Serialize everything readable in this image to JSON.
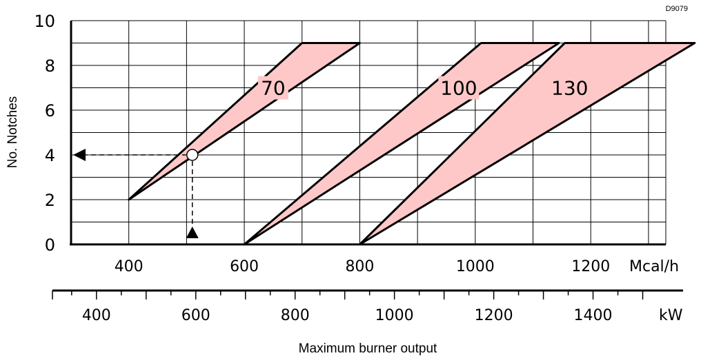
{
  "chart_data": {
    "type": "area",
    "code": "D9079",
    "ylabel": "No. Notches",
    "xlabel": "Maximum burner output",
    "unit_mcal": "Mcal/h",
    "unit_kw": "kW",
    "ylim": [
      0,
      10
    ],
    "xlim_mcal": [
      300,
      1330
    ],
    "y_ticks": [
      "0",
      "2",
      "4",
      "6",
      "8",
      "10"
    ],
    "mcal_ticks": [
      "400",
      "600",
      "800",
      "1000",
      "1200"
    ],
    "kw_ticks": [
      "400",
      "600",
      "800",
      "1000",
      "1200",
      "1400"
    ],
    "grid": true,
    "series": [
      {
        "name": "70",
        "polygon": [
          [
            400,
            2
          ],
          [
            700,
            9
          ],
          [
            800,
            9
          ]
        ]
      },
      {
        "name": "100",
        "polygon": [
          [
            600,
            0
          ],
          [
            1010,
            9
          ],
          [
            1145,
            9
          ]
        ]
      },
      {
        "name": "130",
        "polygon": [
          [
            800,
            0
          ],
          [
            1155,
            9
          ],
          [
            1380,
            9
          ]
        ]
      }
    ],
    "example": {
      "x": 510,
      "y": 4,
      "x_start": 300
    },
    "colors": {
      "fill": "#ffc8c8",
      "line": "#000000",
      "grid": "#000000"
    }
  }
}
